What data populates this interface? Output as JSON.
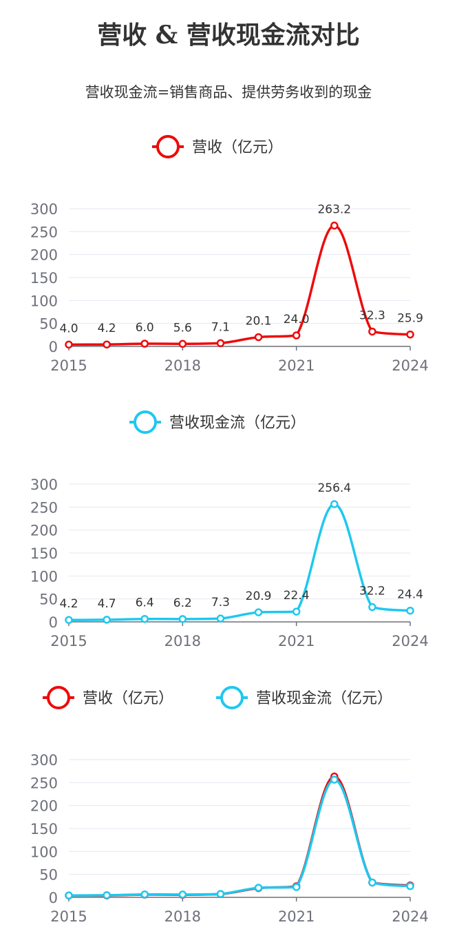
{
  "title": "营收 & 营收现金流对比",
  "subtitle": "营收现金流=销售商品、提供劳务收到的现金",
  "colors": {
    "revenue": "#ee0a0a",
    "cashflow": "#1ec8f0",
    "grid": "#e6e6f2",
    "axis": "#6e7079",
    "label": "#333333"
  },
  "chart_data": [
    {
      "type": "line",
      "legend": [
        "营收（亿元）"
      ],
      "x": [
        2015,
        2016,
        2017,
        2018,
        2019,
        2020,
        2021,
        2022,
        2023,
        2024
      ],
      "x_tick_labels": [
        "2015",
        "2018",
        "2021",
        "2024"
      ],
      "xlim": [
        2015,
        2024
      ],
      "ylim": [
        0,
        300
      ],
      "y_ticks": [
        0,
        50,
        100,
        150,
        200,
        250,
        300
      ],
      "grid": true,
      "smooth": true,
      "show_data_labels": true,
      "series": [
        {
          "name": "营收（亿元）",
          "color": "#ee0a0a",
          "values": [
            4.0,
            4.2,
            6.0,
            5.6,
            7.1,
            20.1,
            24.0,
            263.2,
            32.3,
            25.9
          ],
          "labels": [
            "4.0",
            "4.2",
            "6.0",
            "5.6",
            "7.1",
            "20.1",
            "24.0",
            "263.2",
            "32.3",
            "25.9"
          ]
        }
      ]
    },
    {
      "type": "line",
      "legend": [
        "营收现金流（亿元）"
      ],
      "x": [
        2015,
        2016,
        2017,
        2018,
        2019,
        2020,
        2021,
        2022,
        2023,
        2024
      ],
      "x_tick_labels": [
        "2015",
        "2018",
        "2021",
        "2024"
      ],
      "xlim": [
        2015,
        2024
      ],
      "ylim": [
        0,
        300
      ],
      "y_ticks": [
        0,
        50,
        100,
        150,
        200,
        250,
        300
      ],
      "grid": true,
      "smooth": true,
      "show_data_labels": true,
      "series": [
        {
          "name": "营收现金流（亿元）",
          "color": "#1ec8f0",
          "values": [
            4.2,
            4.7,
            6.4,
            6.2,
            7.3,
            20.9,
            22.4,
            256.4,
            32.2,
            24.4
          ],
          "labels": [
            "4.2",
            "4.7",
            "6.4",
            "6.2",
            "7.3",
            "20.9",
            "22.4",
            "256.4",
            "32.2",
            "24.4"
          ]
        }
      ]
    },
    {
      "type": "line",
      "legend": [
        "营收（亿元）",
        "营收现金流（亿元）"
      ],
      "x": [
        2015,
        2016,
        2017,
        2018,
        2019,
        2020,
        2021,
        2022,
        2023,
        2024
      ],
      "x_tick_labels": [
        "2015",
        "2018",
        "2021",
        "2024"
      ],
      "xlim": [
        2015,
        2024
      ],
      "ylim": [
        0,
        300
      ],
      "y_ticks": [
        0,
        50,
        100,
        150,
        200,
        250,
        300
      ],
      "grid": true,
      "smooth": true,
      "show_data_labels": false,
      "series": [
        {
          "name": "营收（亿元）",
          "color": "#ee0a0a",
          "values": [
            4.0,
            4.2,
            6.0,
            5.6,
            7.1,
            20.1,
            24.0,
            263.2,
            32.3,
            25.9
          ]
        },
        {
          "name": "营收现金流（亿元）",
          "color": "#1ec8f0",
          "values": [
            4.2,
            4.7,
            6.4,
            6.2,
            7.3,
            20.9,
            22.4,
            256.4,
            32.2,
            24.4
          ]
        }
      ]
    }
  ]
}
